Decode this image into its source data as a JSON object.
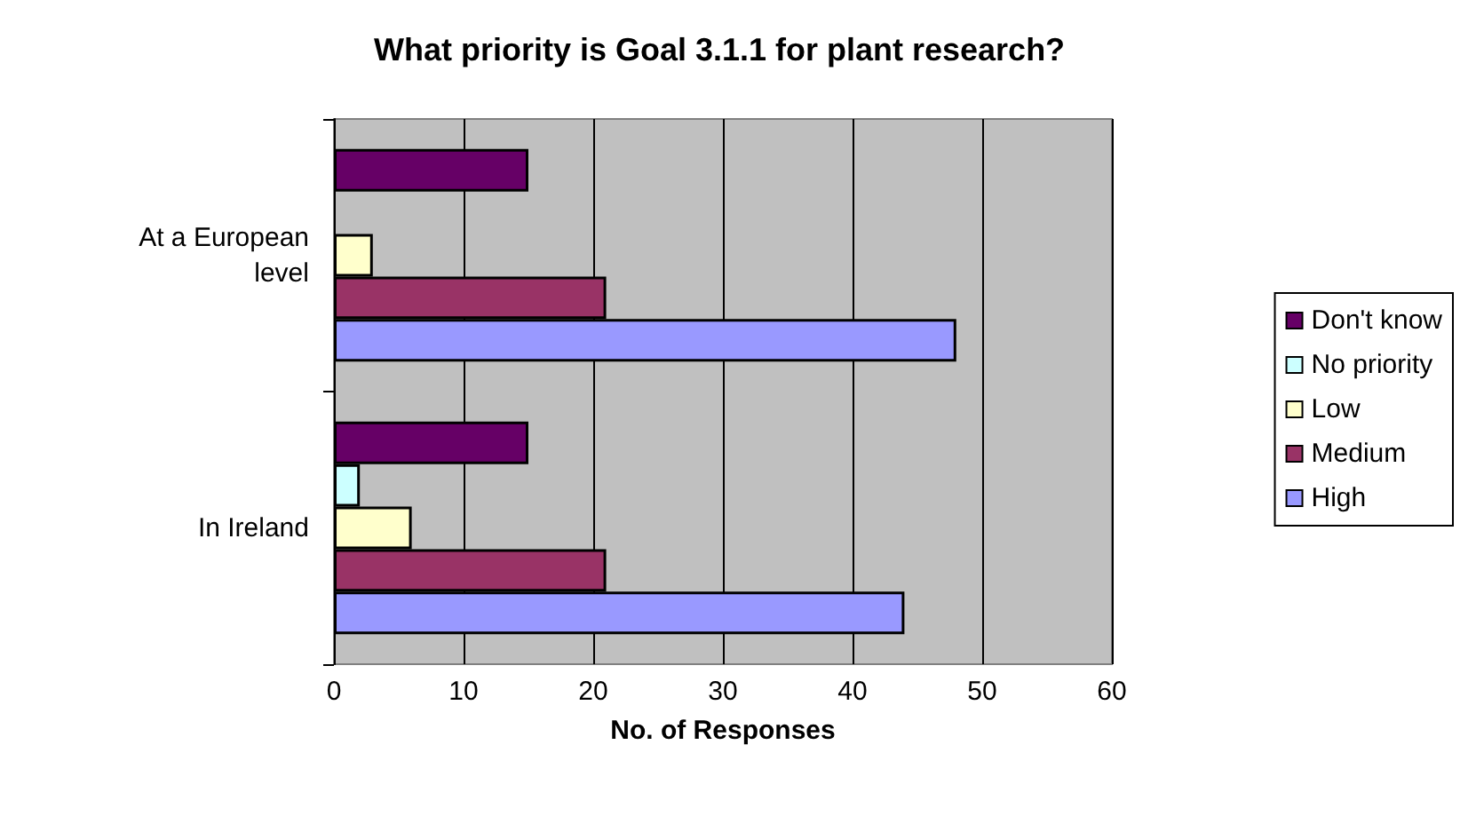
{
  "chart_data": {
    "type": "bar",
    "orientation": "horizontal",
    "title": "What priority is Goal 3.1.1 for plant research?",
    "xlabel": "No. of Responses",
    "categories": [
      "At a European level",
      "In Ireland"
    ],
    "series": [
      {
        "name": "Don't know",
        "color": "#660066",
        "values": [
          15,
          15
        ]
      },
      {
        "name": "No priority",
        "color": "#ccffff",
        "values": [
          null,
          2
        ]
      },
      {
        "name": "Low",
        "color": "#ffffcc",
        "values": [
          3,
          6
        ]
      },
      {
        "name": "Medium",
        "color": "#993366",
        "values": [
          21,
          21
        ]
      },
      {
        "name": "High",
        "color": "#9999ff",
        "values": [
          48,
          44
        ]
      }
    ],
    "xlim": [
      0,
      60
    ],
    "xticks": [
      0,
      10,
      20,
      30,
      40,
      50,
      60
    ],
    "grid": "x",
    "legend": "right"
  }
}
